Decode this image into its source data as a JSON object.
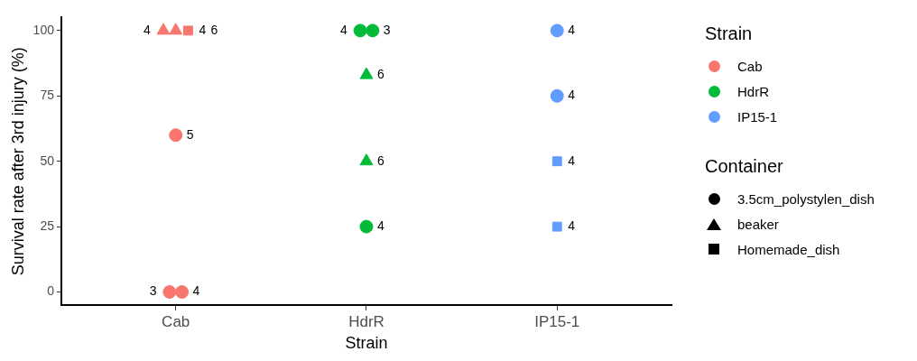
{
  "chart_data": {
    "type": "scatter",
    "xlabel": "Strain",
    "ylabel": "Survival rate after 3rd injury (%)",
    "legend_title": [
      "Strain",
      "Container"
    ],
    "legend": "right",
    "categories": [
      "Cab",
      "HdrR",
      "IP15-1"
    ],
    "colors": [
      "#f8766d",
      "#00ba38",
      "#619cff"
    ],
    "ylim": [
      -5,
      105
    ],
    "yticks": [
      0,
      25,
      50,
      75,
      100
    ],
    "grid": false,
    "series": [
      {
        "name": "3.5cm_polystylen_dish",
        "marker": "circle",
        "x": [
          "Cab",
          "Cab",
          "Cab",
          "HdrR",
          "HdrR",
          "HdrR",
          "IP15-1",
          "IP15-1"
        ],
        "values": [
          60,
          0,
          0,
          100,
          100,
          25,
          100,
          75
        ],
        "colors": [
          "#f8766d",
          "#f8766d",
          "#f8766d",
          "#00ba38",
          "#00ba38",
          "#00ba38",
          "#619cff",
          "#619cff"
        ]
      },
      {
        "name": "beaker",
        "marker": "triangle",
        "x": [
          "Cab",
          "Cab",
          "HdrR",
          "HdrR"
        ],
        "values": [
          100,
          100,
          83,
          50
        ],
        "colors": [
          "#f8766d",
          "#f8766d",
          "#00ba38",
          "#00ba38"
        ]
      },
      {
        "name": "Homemade_dish",
        "marker": "square",
        "x": [
          "Cab",
          "IP15-1",
          "IP15-1"
        ],
        "values": [
          100,
          50,
          25
        ],
        "colors": [
          "#f8766d",
          "#619cff",
          "#619cff"
        ]
      }
    ],
    "annotations": [
      {
        "text": "5",
        "x": "Cab",
        "y": 60
      },
      {
        "text": "3",
        "x": "Cab",
        "y": 0
      },
      {
        "text": "4",
        "x": "Cab",
        "y": 0
      },
      {
        "text": "4",
        "x": "HdrR",
        "y": 100
      },
      {
        "text": "3",
        "x": "HdrR",
        "y": 100
      },
      {
        "text": "4",
        "x": "HdrR",
        "y": 25
      },
      {
        "text": "4",
        "x": "IP15-1",
        "y": 100
      },
      {
        "text": "4",
        "x": "IP15-1",
        "y": 75
      },
      {
        "text": "4",
        "x": "Cab",
        "y": 100
      },
      {
        "text": "4",
        "x": "Cab",
        "y": 100
      },
      {
        "text": "6",
        "x": "HdrR",
        "y": 83
      },
      {
        "text": "6",
        "x": "HdrR",
        "y": 50
      },
      {
        "text": "6",
        "x": "Cab",
        "y": 100
      },
      {
        "text": "4",
        "x": "IP15-1",
        "y": 50
      },
      {
        "text": "4",
        "x": "IP15-1",
        "y": 25
      }
    ]
  }
}
